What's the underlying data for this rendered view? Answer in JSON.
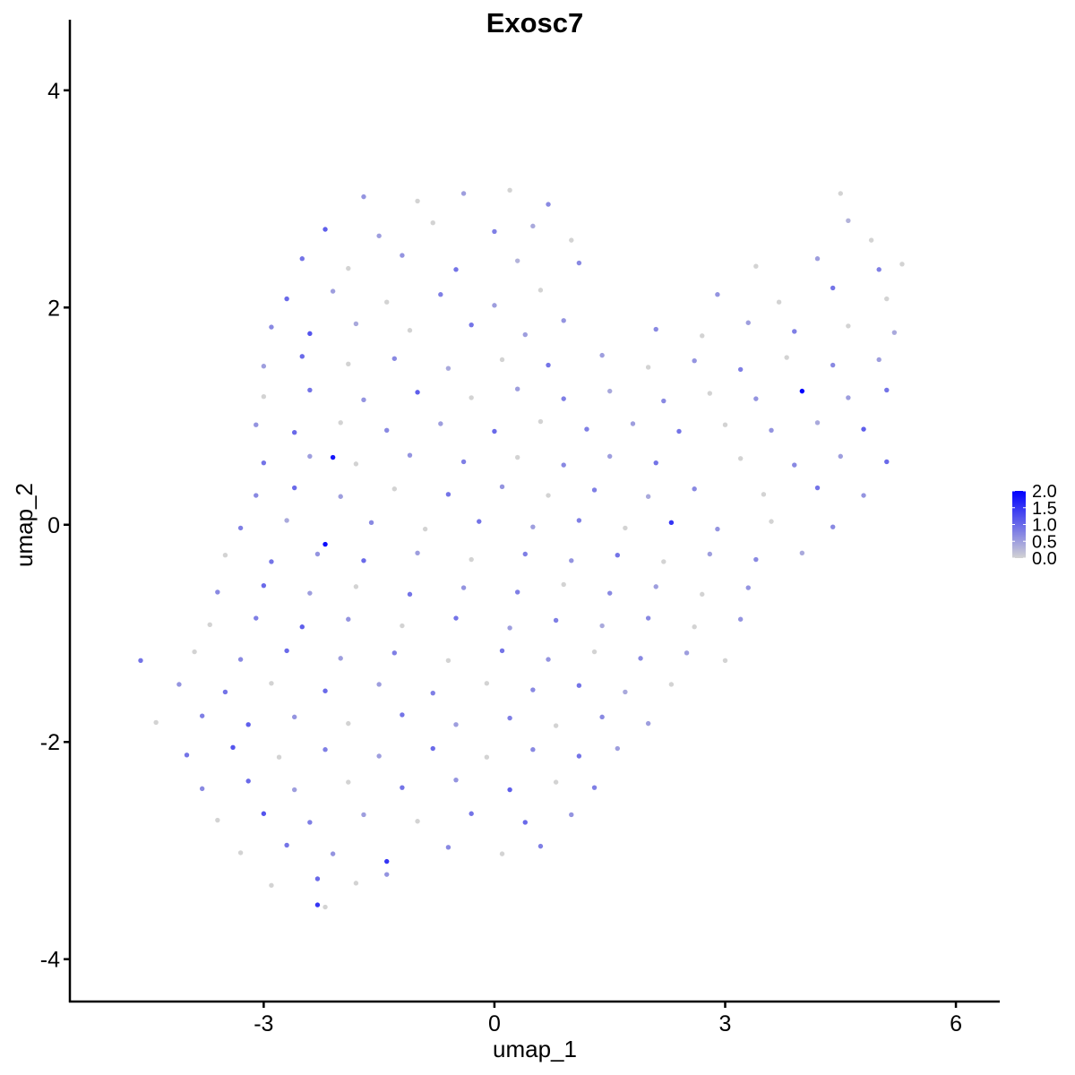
{
  "chart_data": {
    "type": "scatter",
    "title": "Exosc7",
    "xlabel": "umap_1",
    "ylabel": "umap_2",
    "xlim": [
      -5.52,
      6.57
    ],
    "ylim": [
      -4.39,
      4.65
    ],
    "xticks": [
      -3,
      0,
      3,
      6
    ],
    "xtick_labels": [
      "-3",
      "0",
      "3",
      "6"
    ],
    "yticks": [
      -4,
      -2,
      0,
      2,
      4
    ],
    "ytick_labels": [
      "-4",
      "-2",
      "0",
      "2",
      "4"
    ],
    "grid": false,
    "legend": {
      "placement": "right",
      "type": "colorbar",
      "min": 0,
      "max": 2.0,
      "ticks": [
        2.0,
        1.5,
        1.0,
        0.5,
        0.0
      ],
      "tick_labels": [
        "2.0",
        "1.5",
        "1.0",
        "0.5",
        "0.0"
      ],
      "color_low": "#D3D3D3",
      "color_high": "#0000FF"
    },
    "points": [
      [
        -1.7,
        3.02,
        0.6
      ],
      [
        -1.0,
        2.98,
        0
      ],
      [
        -0.4,
        3.05,
        0.5
      ],
      [
        0.2,
        3.08,
        0
      ],
      [
        0.7,
        2.95,
        0.7
      ],
      [
        4.5,
        3.05,
        0
      ],
      [
        -2.2,
        2.72,
        1.1
      ],
      [
        -1.5,
        2.66,
        0.5
      ],
      [
        -0.8,
        2.78,
        0
      ],
      [
        0.0,
        2.7,
        0.8
      ],
      [
        0.5,
        2.75,
        0.4
      ],
      [
        1.0,
        2.62,
        0
      ],
      [
        4.6,
        2.8,
        0.3
      ],
      [
        4.9,
        2.62,
        0
      ],
      [
        -2.5,
        2.45,
        0.9
      ],
      [
        -1.9,
        2.36,
        0
      ],
      [
        -1.2,
        2.48,
        0.6
      ],
      [
        -0.5,
        2.35,
        0.9
      ],
      [
        0.3,
        2.43,
        0.3
      ],
      [
        1.1,
        2.41,
        0.7
      ],
      [
        3.4,
        2.38,
        0
      ],
      [
        4.2,
        2.45,
        0.5
      ],
      [
        5.0,
        2.35,
        0.8
      ],
      [
        5.3,
        2.4,
        0
      ],
      [
        -2.7,
        2.08,
        1.0
      ],
      [
        -2.1,
        2.15,
        0.5
      ],
      [
        -1.4,
        2.05,
        0
      ],
      [
        -0.7,
        2.12,
        0.8
      ],
      [
        0.0,
        2.02,
        0.5
      ],
      [
        0.6,
        2.16,
        0
      ],
      [
        2.9,
        2.12,
        0.6
      ],
      [
        3.7,
        2.05,
        0
      ],
      [
        4.4,
        2.18,
        0.9
      ],
      [
        5.1,
        2.08,
        0
      ],
      [
        -2.9,
        1.82,
        0.7
      ],
      [
        -2.4,
        1.76,
        1.2
      ],
      [
        -1.8,
        1.85,
        0.4
      ],
      [
        -1.1,
        1.79,
        0
      ],
      [
        -0.3,
        1.84,
        0.9
      ],
      [
        0.4,
        1.75,
        0.5
      ],
      [
        0.9,
        1.88,
        0.6
      ],
      [
        2.1,
        1.8,
        0.7
      ],
      [
        2.7,
        1.74,
        0
      ],
      [
        3.3,
        1.86,
        0.5
      ],
      [
        3.9,
        1.78,
        0.8
      ],
      [
        4.6,
        1.83,
        0
      ],
      [
        5.2,
        1.77,
        0.4
      ],
      [
        -3.0,
        1.46,
        0.5
      ],
      [
        -2.5,
        1.55,
        1.0
      ],
      [
        -1.9,
        1.48,
        0
      ],
      [
        -1.3,
        1.53,
        0.7
      ],
      [
        -0.6,
        1.44,
        0.4
      ],
      [
        0.1,
        1.52,
        0
      ],
      [
        0.7,
        1.47,
        0.9
      ],
      [
        1.4,
        1.56,
        0.5
      ],
      [
        2.0,
        1.45,
        0
      ],
      [
        2.6,
        1.51,
        0.6
      ],
      [
        3.2,
        1.43,
        0.8
      ],
      [
        3.8,
        1.54,
        0
      ],
      [
        4.4,
        1.47,
        0.7
      ],
      [
        5.0,
        1.52,
        0.5
      ],
      [
        -3.0,
        1.18,
        0
      ],
      [
        -2.4,
        1.24,
        0.9
      ],
      [
        -1.7,
        1.15,
        0.6
      ],
      [
        -1.0,
        1.22,
        1.1
      ],
      [
        -0.3,
        1.17,
        0
      ],
      [
        0.3,
        1.25,
        0.5
      ],
      [
        0.9,
        1.16,
        0.8
      ],
      [
        1.5,
        1.23,
        0.4
      ],
      [
        2.2,
        1.14,
        0.7
      ],
      [
        2.8,
        1.21,
        0
      ],
      [
        3.4,
        1.16,
        0.6
      ],
      [
        4.0,
        1.23,
        2.0
      ],
      [
        4.6,
        1.17,
        0.5
      ],
      [
        5.1,
        1.24,
        0.9
      ],
      [
        -3.1,
        0.92,
        0.6
      ],
      [
        -2.6,
        0.85,
        1.0
      ],
      [
        -2.0,
        0.94,
        0
      ],
      [
        -1.4,
        0.87,
        0.7
      ],
      [
        -0.7,
        0.93,
        0.5
      ],
      [
        0.0,
        0.86,
        1.0
      ],
      [
        0.6,
        0.95,
        0
      ],
      [
        1.2,
        0.88,
        0.8
      ],
      [
        1.8,
        0.93,
        0.5
      ],
      [
        2.4,
        0.86,
        0.9
      ],
      [
        3.0,
        0.92,
        0
      ],
      [
        3.6,
        0.87,
        0.6
      ],
      [
        4.2,
        0.94,
        0.4
      ],
      [
        4.8,
        0.88,
        1.1
      ],
      [
        -3.0,
        0.57,
        0.9
      ],
      [
        -2.4,
        0.63,
        0.5
      ],
      [
        -2.1,
        0.62,
        1.8
      ],
      [
        -1.8,
        0.56,
        0
      ],
      [
        -1.1,
        0.64,
        0.6
      ],
      [
        -0.4,
        0.58,
        0.8
      ],
      [
        0.3,
        0.62,
        0
      ],
      [
        0.9,
        0.55,
        0.7
      ],
      [
        1.5,
        0.63,
        0.5
      ],
      [
        2.1,
        0.57,
        0.9
      ],
      [
        3.2,
        0.61,
        0
      ],
      [
        3.9,
        0.55,
        0.7
      ],
      [
        4.5,
        0.63,
        0.5
      ],
      [
        5.1,
        0.58,
        1.0
      ],
      [
        -3.1,
        0.27,
        0.7
      ],
      [
        -2.6,
        0.34,
        1.0
      ],
      [
        -2.0,
        0.26,
        0.5
      ],
      [
        -1.3,
        0.33,
        0
      ],
      [
        -0.6,
        0.28,
        0.9
      ],
      [
        0.1,
        0.35,
        0.6
      ],
      [
        0.7,
        0.27,
        0
      ],
      [
        1.3,
        0.32,
        0.8
      ],
      [
        2.0,
        0.26,
        0.4
      ],
      [
        2.6,
        0.33,
        0.7
      ],
      [
        3.5,
        0.28,
        0
      ],
      [
        4.2,
        0.34,
        0.9
      ],
      [
        4.8,
        0.27,
        0.6
      ],
      [
        -3.3,
        -0.03,
        0.8
      ],
      [
        -2.7,
        0.04,
        0.4
      ],
      [
        -2.2,
        -0.18,
        1.9
      ],
      [
        -1.6,
        0.02,
        0.7
      ],
      [
        -0.9,
        -0.04,
        0
      ],
      [
        -0.2,
        0.03,
        0.9
      ],
      [
        0.5,
        -0.02,
        0.5
      ],
      [
        1.1,
        0.04,
        0.8
      ],
      [
        1.7,
        -0.03,
        0
      ],
      [
        2.3,
        0.02,
        1.5
      ],
      [
        2.9,
        -0.04,
        0.6
      ],
      [
        3.6,
        0.03,
        0
      ],
      [
        4.4,
        -0.02,
        0.7
      ],
      [
        -3.5,
        -0.28,
        0
      ],
      [
        -2.9,
        -0.34,
        0.9
      ],
      [
        -2.3,
        -0.27,
        0.6
      ],
      [
        -1.7,
        -0.33,
        1.0
      ],
      [
        -1.0,
        -0.26,
        0.5
      ],
      [
        -0.3,
        -0.32,
        0
      ],
      [
        0.4,
        -0.27,
        0.8
      ],
      [
        1.0,
        -0.33,
        0.6
      ],
      [
        1.6,
        -0.28,
        0.9
      ],
      [
        2.2,
        -0.34,
        0
      ],
      [
        2.8,
        -0.27,
        0.5
      ],
      [
        3.4,
        -0.32,
        0.7
      ],
      [
        4.0,
        -0.26,
        0.4
      ],
      [
        -3.6,
        -0.62,
        0.7
      ],
      [
        -3.0,
        -0.56,
        1.0
      ],
      [
        -2.4,
        -0.63,
        0.5
      ],
      [
        -1.8,
        -0.57,
        0
      ],
      [
        -1.1,
        -0.64,
        0.9
      ],
      [
        -0.4,
        -0.58,
        0.6
      ],
      [
        0.3,
        -0.62,
        0.8
      ],
      [
        0.9,
        -0.55,
        0
      ],
      [
        1.5,
        -0.63,
        0.7
      ],
      [
        2.1,
        -0.57,
        0.5
      ],
      [
        2.7,
        -0.64,
        0
      ],
      [
        3.3,
        -0.58,
        0.6
      ],
      [
        -3.7,
        -0.92,
        0
      ],
      [
        -3.1,
        -0.86,
        0.8
      ],
      [
        -2.5,
        -0.94,
        1.1
      ],
      [
        -1.9,
        -0.87,
        0.6
      ],
      [
        -1.2,
        -0.93,
        0
      ],
      [
        -0.5,
        -0.86,
        0.9
      ],
      [
        0.2,
        -0.95,
        0.5
      ],
      [
        0.8,
        -0.88,
        0.8
      ],
      [
        1.4,
        -0.93,
        0.4
      ],
      [
        2.0,
        -0.86,
        0.7
      ],
      [
        2.6,
        -0.94,
        0
      ],
      [
        3.2,
        -0.87,
        0.6
      ],
      [
        -4.6,
        -1.25,
        0.9
      ],
      [
        -3.9,
        -1.17,
        0
      ],
      [
        -3.3,
        -1.24,
        0.7
      ],
      [
        -2.7,
        -1.16,
        1.0
      ],
      [
        -2.0,
        -1.23,
        0.5
      ],
      [
        -1.3,
        -1.18,
        0.8
      ],
      [
        -0.6,
        -1.25,
        0
      ],
      [
        0.1,
        -1.16,
        0.9
      ],
      [
        0.7,
        -1.24,
        0.6
      ],
      [
        1.3,
        -1.17,
        0
      ],
      [
        1.9,
        -1.23,
        0.7
      ],
      [
        2.5,
        -1.18,
        0.5
      ],
      [
        3.0,
        -1.25,
        0
      ],
      [
        -4.1,
        -1.47,
        0.6
      ],
      [
        -3.5,
        -1.54,
        0.9
      ],
      [
        -2.9,
        -1.46,
        0
      ],
      [
        -2.2,
        -1.53,
        1.0
      ],
      [
        -1.5,
        -1.47,
        0.5
      ],
      [
        -0.8,
        -1.55,
        0.8
      ],
      [
        -0.1,
        -1.46,
        0
      ],
      [
        0.5,
        -1.52,
        0.7
      ],
      [
        1.1,
        -1.48,
        0.9
      ],
      [
        1.7,
        -1.54,
        0.4
      ],
      [
        2.3,
        -1.47,
        0
      ],
      [
        -4.4,
        -1.82,
        0
      ],
      [
        -3.8,
        -1.76,
        0.8
      ],
      [
        -3.2,
        -1.84,
        1.1
      ],
      [
        -2.6,
        -1.77,
        0.6
      ],
      [
        -1.9,
        -1.83,
        0
      ],
      [
        -1.2,
        -1.75,
        0.9
      ],
      [
        -0.5,
        -1.84,
        0.5
      ],
      [
        0.2,
        -1.78,
        0.8
      ],
      [
        0.8,
        -1.85,
        0
      ],
      [
        1.4,
        -1.77,
        0.7
      ],
      [
        2.0,
        -1.83,
        0.5
      ],
      [
        -4.0,
        -2.12,
        0.9
      ],
      [
        -3.4,
        -2.05,
        1.2
      ],
      [
        -2.8,
        -2.14,
        0
      ],
      [
        -2.2,
        -2.07,
        0.8
      ],
      [
        -1.5,
        -2.13,
        0.5
      ],
      [
        -0.8,
        -2.06,
        1.0
      ],
      [
        -0.1,
        -2.14,
        0
      ],
      [
        0.5,
        -2.07,
        0.7
      ],
      [
        1.1,
        -2.13,
        0.9
      ],
      [
        1.6,
        -2.06,
        0.5
      ],
      [
        -3.8,
        -2.43,
        0.7
      ],
      [
        -3.2,
        -2.36,
        1.0
      ],
      [
        -2.6,
        -2.44,
        0.5
      ],
      [
        -1.9,
        -2.37,
        0
      ],
      [
        -1.2,
        -2.42,
        0.9
      ],
      [
        -0.5,
        -2.35,
        0.6
      ],
      [
        0.2,
        -2.44,
        1.1
      ],
      [
        0.8,
        -2.37,
        0
      ],
      [
        1.3,
        -2.42,
        0.8
      ],
      [
        -3.6,
        -2.72,
        0
      ],
      [
        -3.0,
        -2.66,
        1.2
      ],
      [
        -2.4,
        -2.74,
        0.8
      ],
      [
        -1.7,
        -2.67,
        0.5
      ],
      [
        -1.0,
        -2.73,
        0
      ],
      [
        -0.3,
        -2.66,
        0.9
      ],
      [
        0.4,
        -2.74,
        1.0
      ],
      [
        1.0,
        -2.67,
        0.6
      ],
      [
        -3.3,
        -3.02,
        0
      ],
      [
        -2.7,
        -2.95,
        0.9
      ],
      [
        -2.1,
        -3.03,
        0.6
      ],
      [
        -1.4,
        -3.1,
        1.5
      ],
      [
        -0.6,
        -2.97,
        0.7
      ],
      [
        0.1,
        -3.03,
        0
      ],
      [
        0.6,
        -2.96,
        0.8
      ],
      [
        -2.9,
        -3.32,
        0
      ],
      [
        -2.3,
        -3.26,
        1.0
      ],
      [
        -1.8,
        -3.3,
        0
      ],
      [
        -1.4,
        -3.22,
        0.6
      ],
      [
        -2.3,
        -3.5,
        1.5
      ],
      [
        -2.2,
        -3.52,
        0
      ]
    ]
  }
}
